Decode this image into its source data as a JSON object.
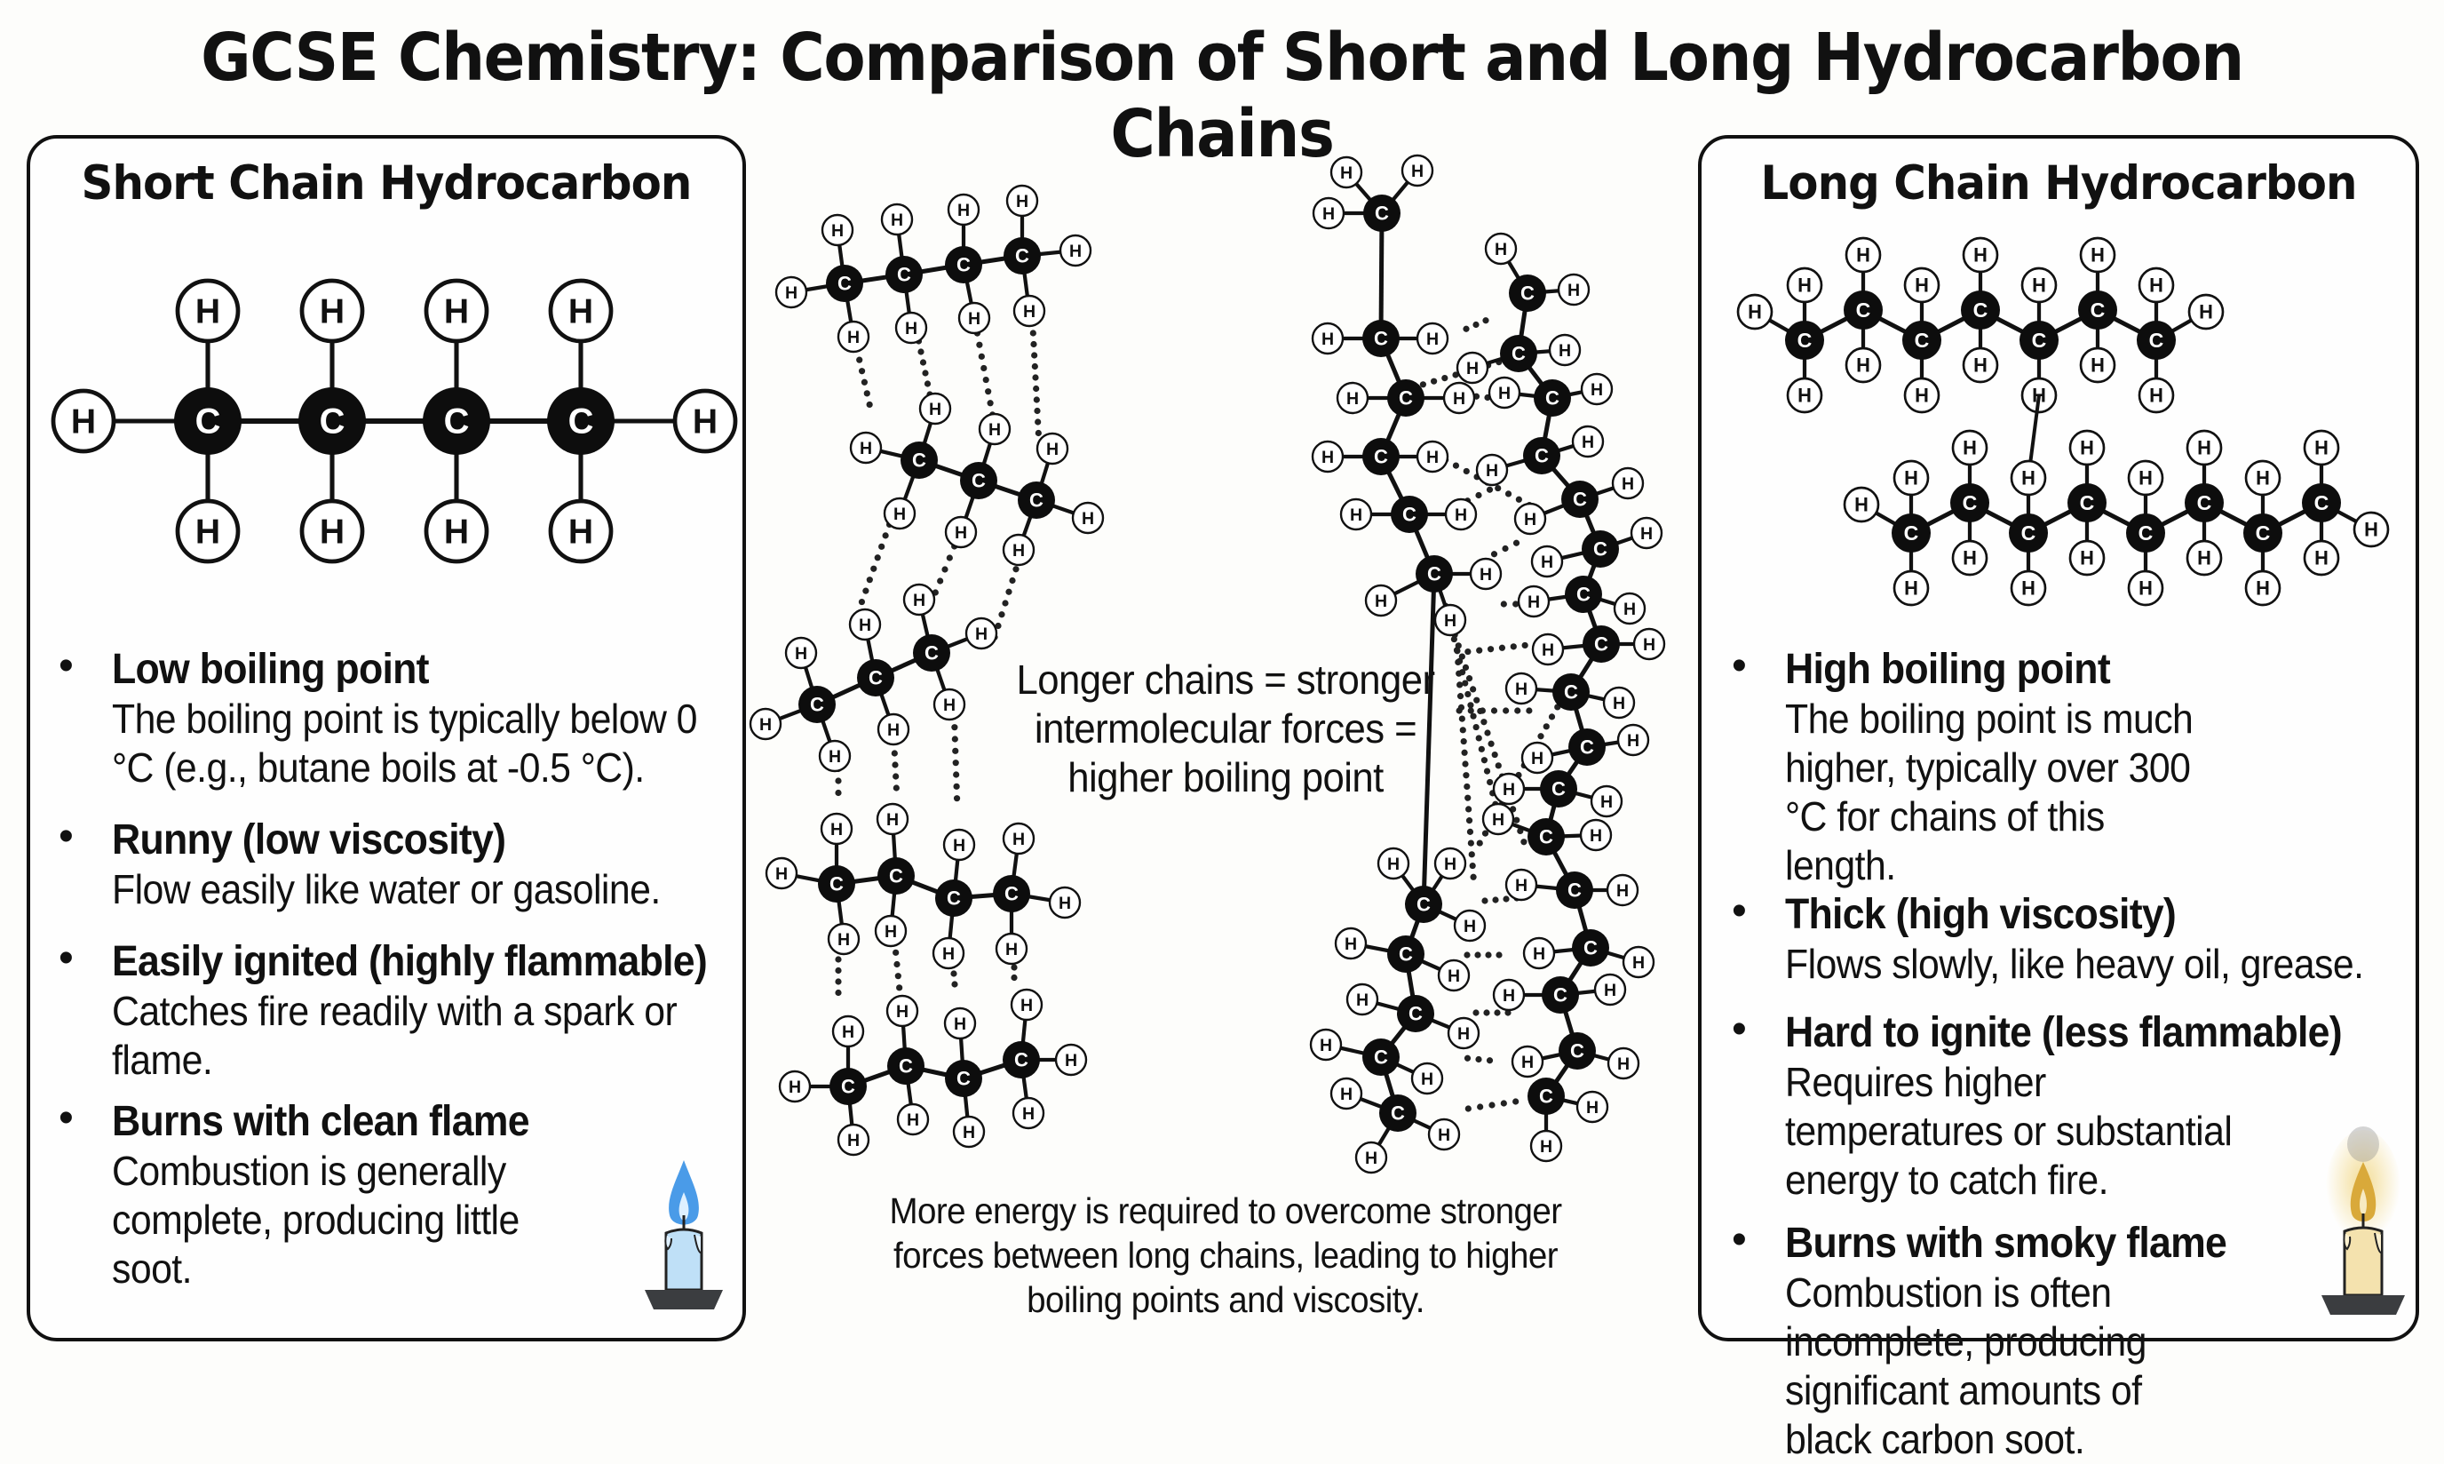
{
  "title": "GCSE Chemistry: Comparison of Short and Long Hydrocarbon Chains",
  "left_panel": {
    "title": "Short Chain Hydrocarbon",
    "molecule_label": "butane (C4H10)",
    "bullets": [
      {
        "heading": "Low boiling point",
        "body": "The boiling point is typically below 0 °C (e.g., butane boils at -0.5 °C)."
      },
      {
        "heading": "Runny (low viscosity)",
        "body": "Flow easily like water or gasoline."
      },
      {
        "heading": "Easily ignited (highly flammable)",
        "body": "Catches fire readily with a spark or flame."
      },
      {
        "heading": "Burns with clean flame",
        "body": "Combustion is generally complete, producing little soot."
      }
    ],
    "icon": "candle-blue-flame-icon",
    "flame_color": "#4a9be8",
    "candle_color": "#bfe0f7"
  },
  "right_panel": {
    "title": "Long Chain Hydrocarbon",
    "bullets": [
      {
        "heading": "High boiling point",
        "body": "The boiling point is much higher, typically over 300 °C for chains of this length."
      },
      {
        "heading": "Thick (high viscosity)",
        "body": "Flows slowly, like heavy oil, grease."
      },
      {
        "heading": "Hard to ignite (less flammable)",
        "body": "Requires higher temperatures or substantial energy to catch fire."
      },
      {
        "heading": "Burns with smoky flame",
        "body": "Combustion is often incomplete, producing significant amounts of black carbon soot."
      }
    ],
    "icon": "candle-smoky-flame-icon",
    "flame_color": "#d9a93a",
    "candle_color": "#f4e2ae"
  },
  "center": {
    "middle_note": "Longer chains = stronger intermolecular forces = higher boiling point",
    "bottom_note": "More energy is required to overcome stronger forces between long chains, leading to higher boiling points and viscosity."
  },
  "atom_labels": {
    "carbon": "C",
    "hydrogen": "H"
  }
}
